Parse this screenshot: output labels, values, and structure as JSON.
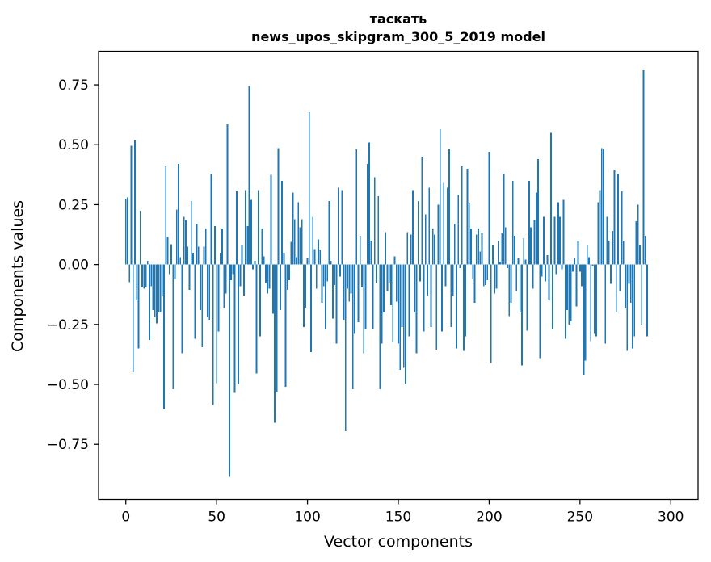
{
  "chart_data": {
    "type": "bar",
    "title": "таскать",
    "subtitle": "news_upos_skipgram_300_5_2019 model",
    "xlabel": "Vector components",
    "ylabel": "Components values",
    "xlim": [
      -15,
      315
    ],
    "ylim": [
      -0.98,
      0.89
    ],
    "xticks": [
      0,
      50,
      100,
      150,
      200,
      250,
      300
    ],
    "xtick_labels": [
      "0",
      "50",
      "100",
      "150",
      "200",
      "250",
      "300"
    ],
    "yticks": [
      0.75,
      0.5,
      0.25,
      0.0,
      -0.25,
      -0.5,
      -0.75
    ],
    "ytick_labels": [
      "0.75",
      "0.50",
      "0.25",
      "0.00",
      "−0.25",
      "−0.50",
      "−0.75"
    ],
    "bar_color": "#1f77b4",
    "grid": false,
    "legend": "none",
    "values": [
      0.275,
      0.28,
      -0.073,
      0.495,
      -0.45,
      0.52,
      -0.15,
      -0.35,
      0.225,
      -0.095,
      -0.1,
      -0.095,
      0.015,
      -0.315,
      -0.09,
      -0.19,
      -0.22,
      -0.245,
      -0.2,
      -0.2,
      -0.13,
      -0.605,
      0.41,
      0.115,
      -0.04,
      0.085,
      -0.52,
      -0.06,
      0.23,
      0.42,
      0.03,
      -0.37,
      0.2,
      0.185,
      0.075,
      -0.105,
      0.265,
      0.05,
      -0.31,
      0.17,
      0.075,
      -0.19,
      -0.345,
      0.075,
      0.15,
      -0.22,
      -0.23,
      0.38,
      -0.585,
      0.16,
      -0.495,
      -0.28,
      0.05,
      0.15,
      -0.18,
      -0.12,
      0.585,
      -0.885,
      -0.065,
      -0.04,
      -0.535,
      0.305,
      -0.5,
      -0.09,
      0.08,
      -0.13,
      0.31,
      0.16,
      0.745,
      0.27,
      -0.02,
      0.015,
      -0.455,
      0.31,
      -0.3,
      0.15,
      0.035,
      -0.075,
      -0.12,
      -0.1,
      0.375,
      -0.205,
      -0.66,
      -0.53,
      0.485,
      -0.19,
      0.35,
      0.05,
      -0.51,
      -0.105,
      -0.065,
      0.095,
      0.3,
      0.19,
      0.03,
      0.26,
      0.155,
      0.19,
      -0.26,
      -0.18,
      0.025,
      0.635,
      -0.365,
      0.2,
      0.065,
      -0.1,
      0.105,
      0.06,
      -0.16,
      -0.09,
      -0.27,
      -0.07,
      0.265,
      0.015,
      -0.225,
      -0.085,
      -0.33,
      0.32,
      -0.05,
      0.31,
      -0.23,
      -0.695,
      -0.1,
      -0.155,
      -0.12,
      -0.52,
      -0.29,
      0.48,
      -0.24,
      0.12,
      -0.095,
      -0.37,
      -0.27,
      0.42,
      0.51,
      0.1,
      -0.27,
      0.365,
      -0.075,
      0.285,
      -0.52,
      -0.33,
      -0.2,
      0.135,
      -0.11,
      -0.075,
      -0.17,
      -0.325,
      0.035,
      -0.155,
      -0.33,
      -0.44,
      -0.26,
      -0.43,
      -0.5,
      0.135,
      -0.3,
      0.125,
      0.31,
      -0.2,
      -0.37,
      0.265,
      -0.07,
      0.45,
      -0.28,
      0.21,
      -0.13,
      0.32,
      -0.26,
      0.15,
      0.125,
      -0.355,
      0.25,
      0.565,
      -0.28,
      0.34,
      -0.09,
      0.32,
      0.48,
      -0.26,
      -0.13,
      0.17,
      -0.35,
      0.29,
      -0.015,
      0.41,
      -0.36,
      -0.3,
      0.4,
      0.255,
      0.15,
      -0.06,
      -0.16,
      0.125,
      0.15,
      0.055,
      0.13,
      -0.09,
      -0.085,
      -0.065,
      0.47,
      -0.41,
      0.08,
      -0.12,
      -0.1,
      0.1,
      0.01,
      0.13,
      0.38,
      0.155,
      -0.015,
      -0.215,
      -0.16,
      0.35,
      0.12,
      -0.11,
      0.025,
      -0.2,
      -0.42,
      0.11,
      0.02,
      -0.275,
      0.35,
      0.155,
      -0.1,
      0.185,
      0.3,
      0.44,
      -0.39,
      -0.05,
      0.2,
      -0.07,
      0.04,
      -0.15,
      0.55,
      -0.27,
      0.2,
      -0.04,
      0.26,
      0.2,
      -0.02,
      0.27,
      -0.31,
      -0.19,
      -0.25,
      -0.235,
      -0.03,
      0.025,
      -0.175,
      0.1,
      -0.03,
      -0.09,
      -0.46,
      -0.4,
      0.08,
      0.03,
      -0.32,
      -0.005,
      -0.29,
      -0.3,
      0.26,
      0.31,
      0.485,
      0.48,
      -0.33,
      0.2,
      0.1,
      -0.08,
      0.14,
      0.395,
      -0.2,
      0.38,
      -0.11,
      0.305,
      0.1,
      -0.18,
      -0.36,
      -0.08,
      -0.16,
      -0.35,
      -0.3,
      0.18,
      0.25,
      0.08,
      -0.25,
      0.81,
      0.12,
      -0.3
    ],
    "peaks_note": ""
  }
}
